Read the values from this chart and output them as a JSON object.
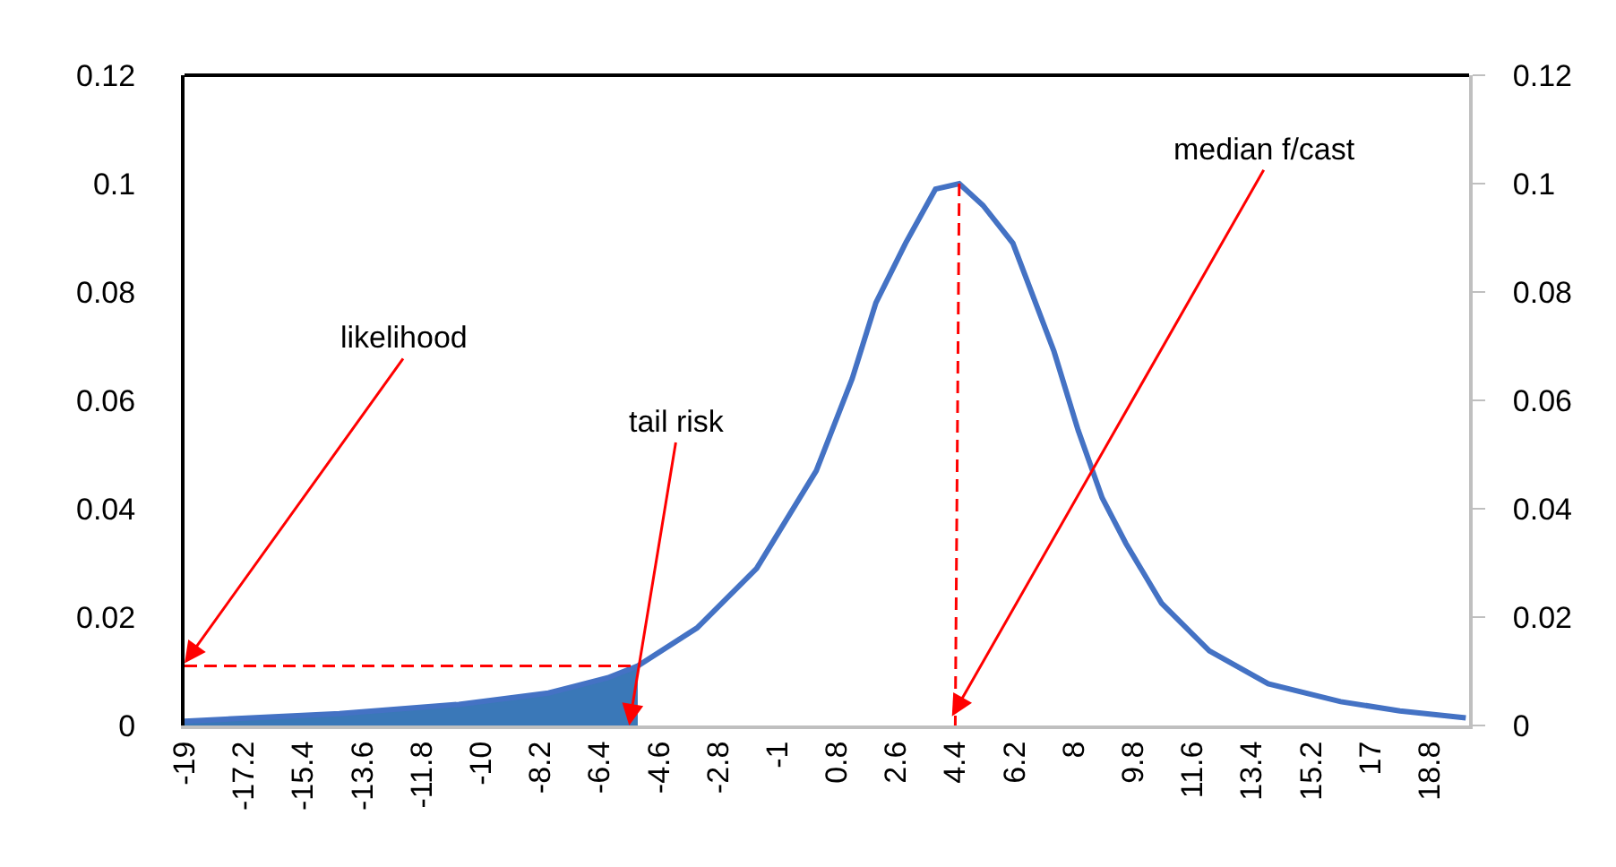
{
  "chart_data": {
    "type": "line",
    "xlim": [
      -19,
      20
    ],
    "xticks": [
      -19,
      -17.2,
      -15.4,
      -13.6,
      -11.8,
      -10,
      -8.2,
      -6.4,
      -4.6,
      -2.8,
      -1,
      0.8,
      2.6,
      4.4,
      6.2,
      8,
      9.8,
      11.6,
      13.4,
      15.2,
      17,
      18.8
    ],
    "ylim": [
      0,
      0.12
    ],
    "yticks": [
      0,
      0.02,
      0.04,
      0.06,
      0.08,
      0.1,
      0.12
    ],
    "y2lim": [
      0,
      0.12
    ],
    "y2ticks": [
      0,
      0.02,
      0.04,
      0.06,
      0.08,
      0.1,
      0.12
    ],
    "marker": "none",
    "series": [
      {
        "type": "area",
        "color": "#3a78b8",
        "x": [
          -19,
          -14.3,
          -10.67,
          -7.95,
          -6.15,
          -5.24
        ],
        "values": [
          0.0008,
          0.0022,
          0.0039,
          0.006,
          0.0088,
          0.011
        ]
      },
      {
        "color": "#4472c4",
        "line_style": "solid",
        "x": [
          -19,
          -14.3,
          -10.67,
          -7.95,
          -6.15,
          -5.24,
          -3.44,
          -1.63,
          0.18,
          1.27,
          1.99,
          2.89,
          3.8,
          4.52,
          5.24,
          6.15,
          7.4,
          8.13,
          8.86,
          9.58,
          10.66,
          12.11,
          13.9,
          16.1,
          17.9,
          19.9
        ],
        "values": [
          0.0008,
          0.0022,
          0.0039,
          0.006,
          0.0088,
          0.011,
          0.018,
          0.029,
          0.047,
          0.064,
          0.078,
          0.089,
          0.099,
          0.1,
          0.096,
          0.089,
          0.069,
          0.0545,
          0.042,
          0.0336,
          0.0226,
          0.0138,
          0.0077,
          0.0044,
          0.0027,
          0.0014
        ]
      },
      {
        "color": "#ff0000",
        "line_style": "dashed",
        "x": [
          -19,
          -5.24
        ],
        "values": [
          0.011,
          0.011
        ]
      },
      {
        "color": "#ff0000",
        "line_style": "dashed",
        "x": [
          4.52,
          4.4
        ],
        "values": [
          0.1,
          0
        ]
      }
    ],
    "annotations": [
      {
        "text": "likelihood",
        "x": -19,
        "y": 0.0115
      },
      {
        "text": "tail risk",
        "x": -5.5,
        "y": 0
      },
      {
        "text": "median f/cast",
        "x": 4.3,
        "y": 0.0017
      }
    ]
  }
}
